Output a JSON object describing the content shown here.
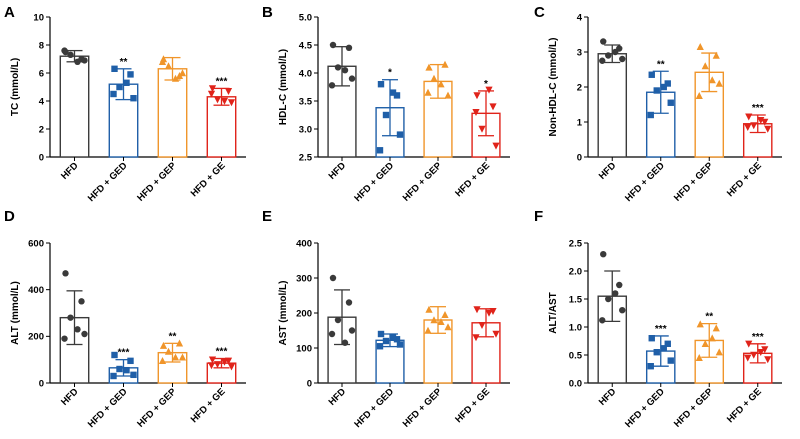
{
  "group_colors": [
    "#3a3a3a",
    "#1f5fa8",
    "#f0952a",
    "#e0231a"
  ],
  "marker_shapes": [
    "circle",
    "square",
    "triangle",
    "inverted-triangle"
  ],
  "chart_data": [
    {
      "type": "bar",
      "panel": "A",
      "ylabel": "TC (mmol/L)",
      "categories": [
        "HFD",
        "HFD + GED",
        "HFD + GEP",
        "HFD + GE"
      ],
      "ylim": [
        0,
        10
      ],
      "yticks": [
        0,
        2,
        4,
        6,
        8,
        10
      ],
      "values": [
        7.2,
        5.2,
        6.3,
        4.3
      ],
      "errors": [
        0.4,
        1.1,
        0.8,
        0.6
      ],
      "points": [
        [
          7.5,
          7.0,
          7.3,
          6.9,
          7.6,
          6.8
        ],
        [
          6.3,
          5.9,
          5.0,
          4.2,
          4.5,
          5.3
        ],
        [
          7.0,
          5.8,
          6.5,
          6.0,
          6.8,
          5.6
        ],
        [
          4.9,
          4.7,
          4.1,
          3.9,
          4.5,
          4.0
        ]
      ],
      "significance": [
        "",
        "**",
        "",
        "***"
      ]
    },
    {
      "type": "bar",
      "panel": "B",
      "ylabel": "HDL-C (mmol/L)",
      "categories": [
        "HFD",
        "HFD + GED",
        "HFD + GEP",
        "HFD + GE"
      ],
      "ylim": [
        2.5,
        5.0
      ],
      "yticks": [
        2.5,
        3.0,
        3.5,
        4.0,
        4.5,
        5.0
      ],
      "values": [
        4.12,
        3.38,
        3.85,
        3.28
      ],
      "errors": [
        0.35,
        0.5,
        0.3,
        0.4
      ],
      "points": [
        [
          4.5,
          4.45,
          4.1,
          3.9,
          3.78,
          4.05
        ],
        [
          3.8,
          3.6,
          3.25,
          2.9,
          2.62,
          3.65
        ],
        [
          4.1,
          4.15,
          3.9,
          3.6,
          3.65,
          3.8
        ],
        [
          3.6,
          3.4,
          3.0,
          2.7,
          3.3,
          3.7
        ]
      ],
      "significance": [
        "",
        "*",
        "",
        "*"
      ]
    },
    {
      "type": "bar",
      "panel": "C",
      "ylabel": "Non-HDL-C (mmol/L)",
      "categories": [
        "HFD",
        "HFD + GED",
        "HFD + GEP",
        "HFD + GE"
      ],
      "ylim": [
        0,
        4
      ],
      "yticks": [
        0,
        1,
        2,
        3,
        4
      ],
      "values": [
        2.95,
        1.85,
        2.42,
        0.95
      ],
      "errors": [
        0.25,
        0.6,
        0.55,
        0.25
      ],
      "points": [
        [
          3.3,
          3.1,
          2.9,
          2.8,
          2.75,
          3.0
        ],
        [
          2.35,
          2.1,
          1.9,
          1.55,
          1.2,
          2.0
        ],
        [
          3.15,
          2.9,
          2.6,
          2.1,
          1.75,
          2.2
        ],
        [
          1.15,
          1.0,
          0.9,
          0.8,
          0.85,
          1.05
        ]
      ],
      "significance": [
        "",
        "**",
        "",
        "***"
      ]
    },
    {
      "type": "bar",
      "panel": "D",
      "ylabel": "ALT (mmol/L)",
      "categories": [
        "HFD",
        "HFD + GED",
        "HFD + GEP",
        "HFD + GE"
      ],
      "ylim": [
        0,
        600
      ],
      "yticks": [
        0,
        200,
        400,
        600
      ],
      "values": [
        280,
        65,
        130,
        85
      ],
      "errors": [
        115,
        35,
        40,
        20
      ],
      "points": [
        [
          470,
          350,
          280,
          210,
          190,
          230
        ],
        [
          120,
          95,
          60,
          35,
          30,
          55
        ],
        [
          160,
          170,
          135,
          110,
          95,
          110
        ],
        [
          100,
          95,
          80,
          70,
          75,
          90
        ]
      ],
      "significance": [
        "",
        "***",
        "**",
        "***"
      ]
    },
    {
      "type": "bar",
      "panel": "E",
      "ylabel": "AST (mmol/L)",
      "categories": [
        "HFD",
        "HFD + GED",
        "HFD + GEP",
        "HFD + GE"
      ],
      "ylim": [
        0,
        400
      ],
      "yticks": [
        0,
        100,
        200,
        300,
        400
      ],
      "values": [
        188,
        122,
        180,
        172
      ],
      "errors": [
        78,
        18,
        38,
        40
      ],
      "points": [
        [
          300,
          230,
          180,
          150,
          140,
          115
        ],
        [
          140,
          125,
          120,
          110,
          105,
          130
        ],
        [
          210,
          195,
          180,
          160,
          150,
          175
        ],
        [
          210,
          205,
          165,
          140,
          130,
          200
        ]
      ],
      "significance": [
        "",
        "",
        "",
        ""
      ]
    },
    {
      "type": "bar",
      "panel": "F",
      "ylabel": "ALT/AST",
      "categories": [
        "HFD",
        "HFD + GED",
        "HFD + GEP",
        "HFD + GE"
      ],
      "ylim": [
        0,
        2.5
      ],
      "yticks": [
        0.0,
        0.5,
        1.0,
        1.5,
        2.0,
        2.5
      ],
      "values": [
        1.55,
        0.57,
        0.76,
        0.53
      ],
      "errors": [
        0.45,
        0.27,
        0.3,
        0.17
      ],
      "points": [
        [
          2.3,
          1.75,
          1.5,
          1.3,
          1.12,
          1.6
        ],
        [
          0.8,
          0.7,
          0.55,
          0.4,
          0.3,
          0.62
        ],
        [
          1.05,
          0.98,
          0.7,
          0.55,
          0.45,
          0.8
        ],
        [
          0.7,
          0.6,
          0.5,
          0.42,
          0.45,
          0.55
        ]
      ],
      "significance": [
        "",
        "***",
        "**",
        "***"
      ]
    }
  ]
}
